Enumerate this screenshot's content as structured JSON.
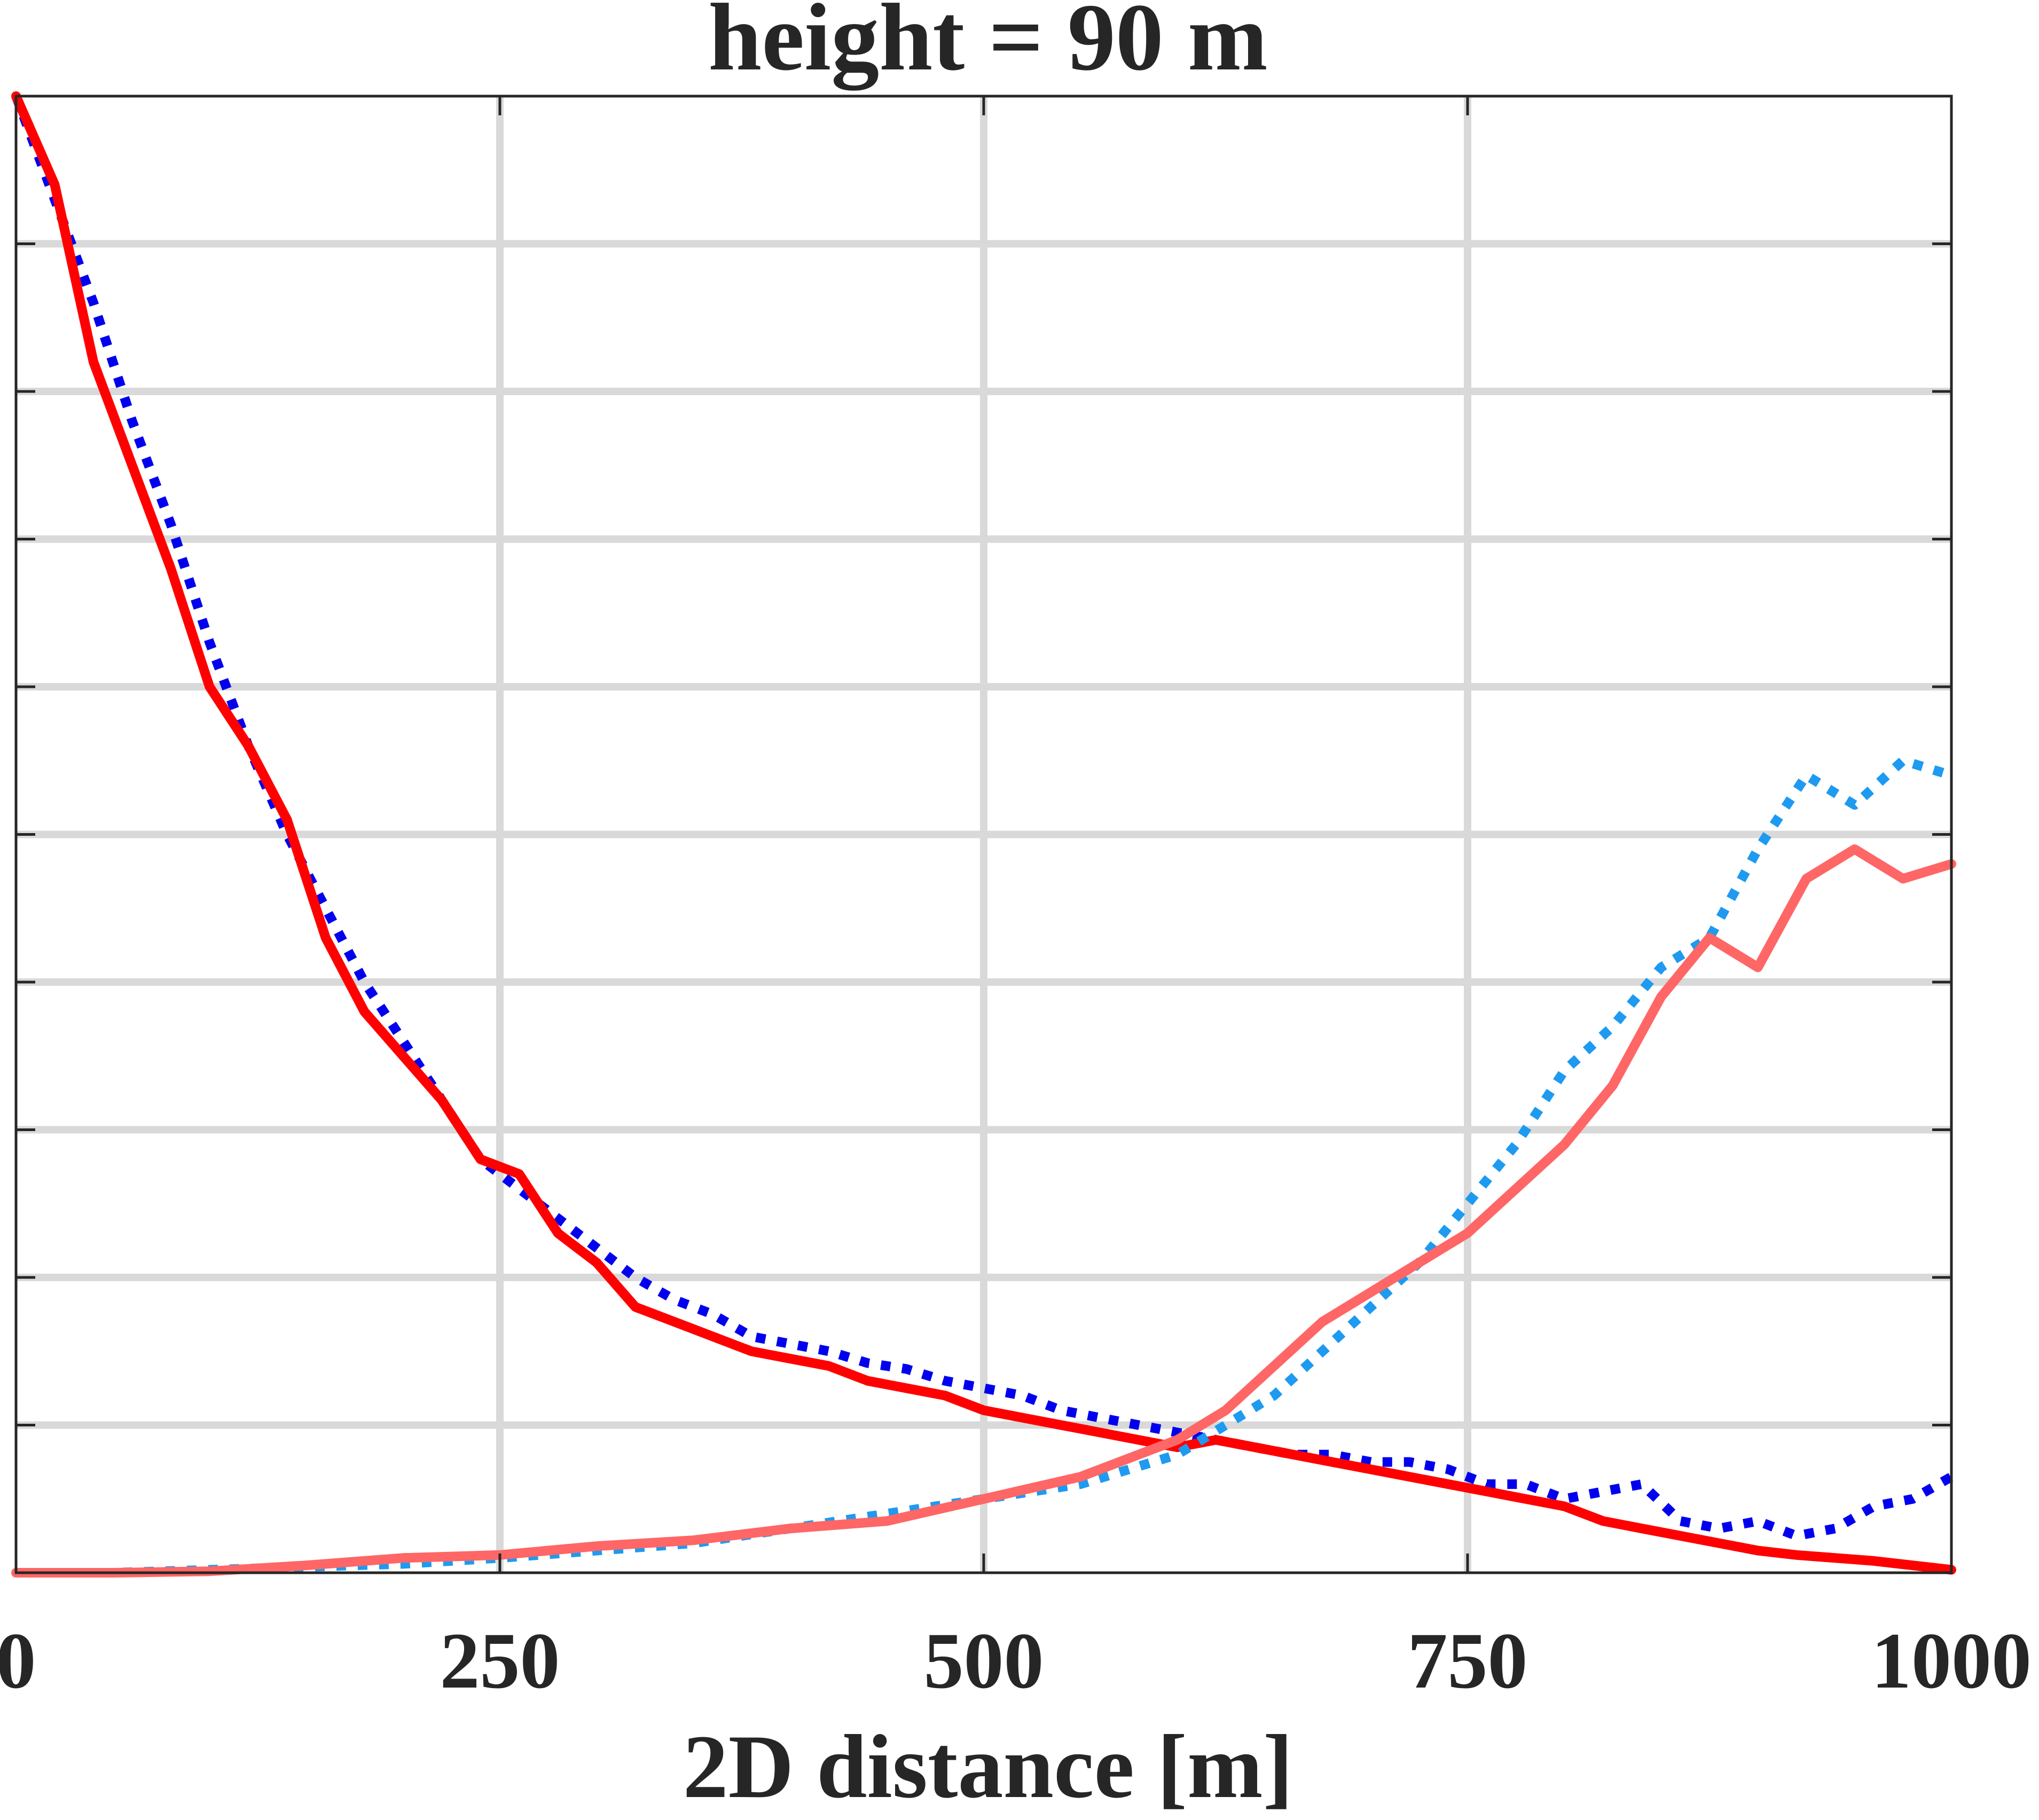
{
  "chart_data": {
    "type": "line",
    "title": "height = 90 m",
    "xlabel": "2D distance [m]",
    "ylabel": "",
    "xlim": [
      0,
      1000
    ],
    "ylim": [
      0,
      10
    ],
    "xticks": [
      0,
      250,
      500,
      750,
      1000
    ],
    "xtick_labels": [
      "0",
      "250",
      "500",
      "750",
      "1000"
    ],
    "yticks": [
      0,
      1,
      2,
      3,
      4,
      5,
      6,
      7,
      8,
      9,
      10
    ],
    "grid": true,
    "legend": "none",
    "series": [
      {
        "color": "#0000ee",
        "style": "dotted",
        "x": [
          0,
          20,
          40,
          60,
          80,
          100,
          120,
          140,
          160,
          180,
          200,
          220,
          240,
          260,
          280,
          300,
          320,
          340,
          360,
          380,
          400,
          420,
          440,
          460,
          480,
          500,
          520,
          540,
          560,
          580,
          600,
          620,
          640,
          660,
          680,
          700,
          720,
          740,
          760,
          780,
          800,
          820,
          840,
          860,
          880,
          900,
          920,
          940,
          960,
          980,
          1000
        ],
        "y": [
          10.0,
          9.3,
          8.6,
          7.8,
          7.1,
          6.3,
          5.6,
          5.0,
          4.5,
          4.0,
          3.6,
          3.2,
          2.8,
          2.6,
          2.4,
          2.2,
          2.0,
          1.85,
          1.75,
          1.6,
          1.55,
          1.5,
          1.42,
          1.38,
          1.3,
          1.25,
          1.2,
          1.1,
          1.05,
          1.0,
          0.95,
          0.9,
          0.85,
          0.8,
          0.8,
          0.75,
          0.75,
          0.7,
          0.6,
          0.6,
          0.5,
          0.55,
          0.6,
          0.35,
          0.3,
          0.35,
          0.25,
          0.3,
          0.45,
          0.5,
          0.65
        ]
      },
      {
        "color": "#ff0000",
        "style": "solid",
        "x": [
          0,
          20,
          40,
          60,
          80,
          100,
          120,
          140,
          160,
          180,
          200,
          220,
          240,
          260,
          280,
          300,
          320,
          340,
          360,
          380,
          400,
          420,
          440,
          460,
          480,
          500,
          520,
          540,
          560,
          580,
          600,
          620,
          640,
          660,
          680,
          700,
          720,
          740,
          760,
          780,
          800,
          820,
          840,
          860,
          880,
          900,
          920,
          940,
          960,
          980,
          1000
        ],
        "y": [
          10.0,
          9.4,
          8.2,
          7.5,
          6.8,
          6.0,
          5.6,
          5.1,
          4.3,
          3.8,
          3.5,
          3.2,
          2.8,
          2.7,
          2.3,
          2.1,
          1.8,
          1.7,
          1.6,
          1.5,
          1.45,
          1.4,
          1.3,
          1.25,
          1.2,
          1.1,
          1.05,
          1.0,
          0.95,
          0.9,
          0.85,
          0.9,
          0.85,
          0.8,
          0.75,
          0.7,
          0.65,
          0.6,
          0.55,
          0.5,
          0.45,
          0.35,
          0.3,
          0.25,
          0.2,
          0.15,
          0.12,
          0.1,
          0.08,
          0.05,
          0.02
        ]
      },
      {
        "color": "#1e9af0",
        "style": "dotted",
        "x": [
          0,
          50,
          100,
          150,
          200,
          250,
          300,
          350,
          400,
          450,
          500,
          550,
          600,
          625,
          650,
          675,
          700,
          725,
          750,
          775,
          800,
          825,
          850,
          875,
          900,
          925,
          950,
          975,
          1000
        ],
        "y": [
          0,
          0,
          0.02,
          0.04,
          0.06,
          0.1,
          0.15,
          0.2,
          0.3,
          0.4,
          0.5,
          0.6,
          0.8,
          1.0,
          1.2,
          1.5,
          1.8,
          2.1,
          2.5,
          2.9,
          3.4,
          3.7,
          4.1,
          4.3,
          4.9,
          5.4,
          5.2,
          5.5,
          5.4
        ]
      },
      {
        "color": "#ff6666",
        "style": "solid",
        "x": [
          0,
          50,
          100,
          150,
          200,
          250,
          300,
          350,
          400,
          450,
          500,
          550,
          600,
          625,
          650,
          675,
          700,
          725,
          750,
          775,
          800,
          825,
          850,
          875,
          900,
          925,
          950,
          975,
          1000
        ],
        "y": [
          0,
          0,
          0.01,
          0.05,
          0.1,
          0.12,
          0.18,
          0.22,
          0.3,
          0.35,
          0.5,
          0.65,
          0.9,
          1.1,
          1.4,
          1.7,
          1.9,
          2.1,
          2.3,
          2.6,
          2.9,
          3.3,
          3.9,
          4.3,
          4.1,
          4.7,
          4.9,
          4.7,
          4.8
        ]
      }
    ]
  }
}
